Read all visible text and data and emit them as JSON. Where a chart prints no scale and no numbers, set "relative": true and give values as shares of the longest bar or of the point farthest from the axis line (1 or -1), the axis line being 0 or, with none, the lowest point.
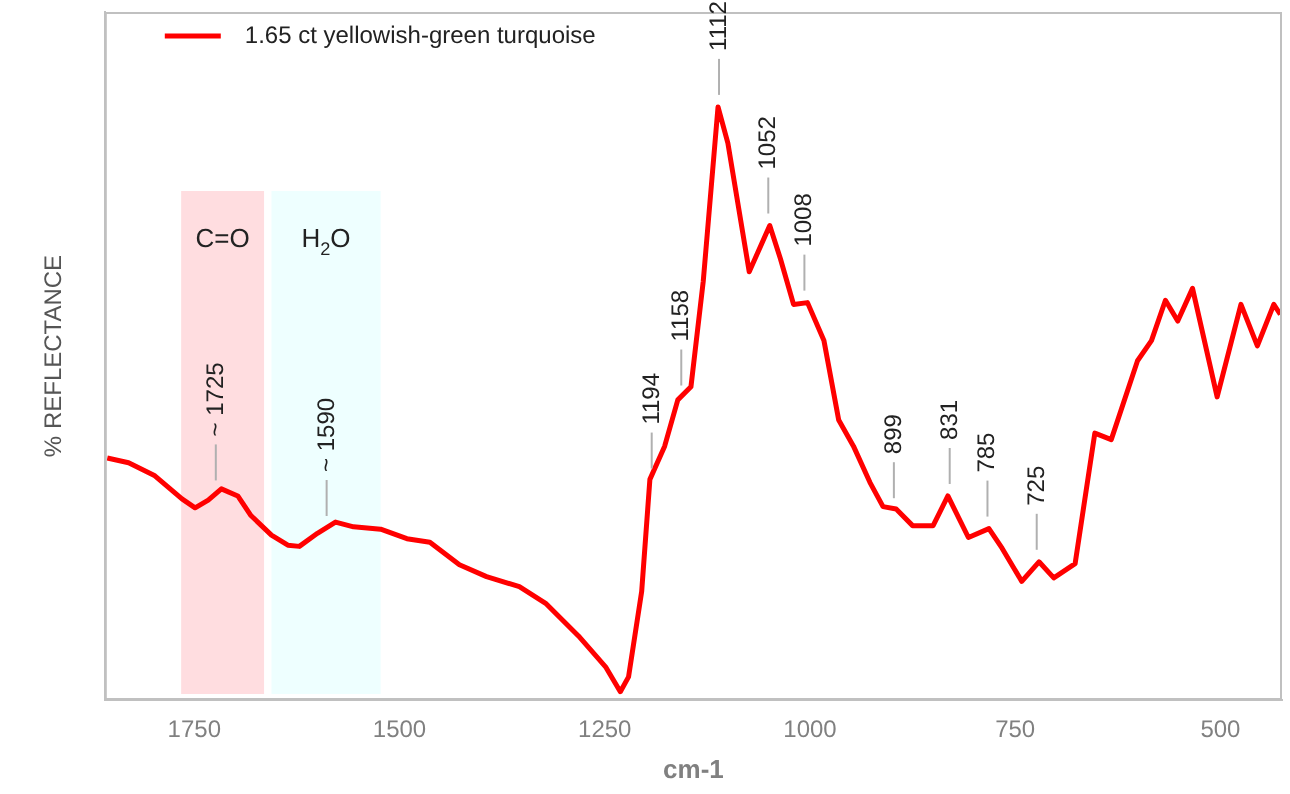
{
  "chart_data": {
    "type": "line",
    "relative": true,
    "xlabel": "cm-1",
    "ylabel": "% REFLECTANCE",
    "xlim": [
      1859,
      425
    ],
    "xticks": [
      1750,
      1500,
      1250,
      1000,
      750,
      500
    ],
    "grid": false,
    "legend": "top left",
    "marker": "none",
    "line_style": "solid",
    "x": [
      1856,
      1830,
      1798,
      1765,
      1749,
      1733,
      1717,
      1697,
      1681,
      1656,
      1636,
      1622,
      1600,
      1578,
      1556,
      1523,
      1491,
      1463,
      1427,
      1394,
      1354,
      1322,
      1282,
      1249,
      1231,
      1221,
      1205,
      1195,
      1177,
      1161,
      1145,
      1130,
      1112,
      1100,
      1074,
      1049,
      1036,
      1020,
      1003,
      983,
      965,
      947,
      927,
      911,
      895,
      875,
      850,
      832,
      807,
      782,
      766,
      742,
      721,
      703,
      677,
      653,
      633,
      601,
      584,
      567,
      552,
      534,
      504,
      475,
      455,
      435,
      427
    ],
    "series": [
      {
        "name": "1.65 ct yellowish-green turquoise",
        "color": "#ff0000",
        "values": [
          0.408,
          0.4,
          0.378,
          0.339,
          0.324,
          0.337,
          0.356,
          0.344,
          0.311,
          0.278,
          0.261,
          0.259,
          0.281,
          0.3,
          0.292,
          0.288,
          0.272,
          0.266,
          0.228,
          0.208,
          0.191,
          0.163,
          0.108,
          0.056,
          0.014,
          0.039,
          0.183,
          0.372,
          0.428,
          0.506,
          0.528,
          0.706,
          1.0,
          0.939,
          0.722,
          0.8,
          0.744,
          0.667,
          0.67,
          0.606,
          0.472,
          0.428,
          0.367,
          0.326,
          0.322,
          0.294,
          0.294,
          0.344,
          0.274,
          0.289,
          0.256,
          0.2,
          0.233,
          0.206,
          0.23,
          0.45,
          0.439,
          0.572,
          0.606,
          0.674,
          0.639,
          0.694,
          0.511,
          0.667,
          0.597,
          0.667,
          0.65
        ]
      }
    ],
    "bands": [
      {
        "axis": "x",
        "from": 1766,
        "to": 1665,
        "label": "C=O",
        "color": "#ffdde0"
      },
      {
        "axis": "x",
        "from": 1656,
        "to": 1523,
        "label": "H$_{2}$O",
        "color": "#eeffff"
      }
    ],
    "annotations": [
      {
        "text": "~ 1725",
        "x": 1725,
        "y": 0.35
      },
      {
        "text": "~ 1590",
        "x": 1590,
        "y": 0.29
      },
      {
        "text": "1194",
        "x": 1194,
        "y": 0.37
      },
      {
        "text": "1158",
        "x": 1158,
        "y": 0.51
      },
      {
        "text": "1112",
        "x": 1112,
        "y": 1.0
      },
      {
        "text": "1052",
        "x": 1052,
        "y": 0.8
      },
      {
        "text": "1008",
        "x": 1008,
        "y": 0.67
      },
      {
        "text": "899",
        "x": 899,
        "y": 0.32
      },
      {
        "text": "831",
        "x": 831,
        "y": 0.344
      },
      {
        "text": "785",
        "x": 785,
        "y": 0.289
      },
      {
        "text": "725",
        "x": 725,
        "y": 0.233
      }
    ]
  }
}
